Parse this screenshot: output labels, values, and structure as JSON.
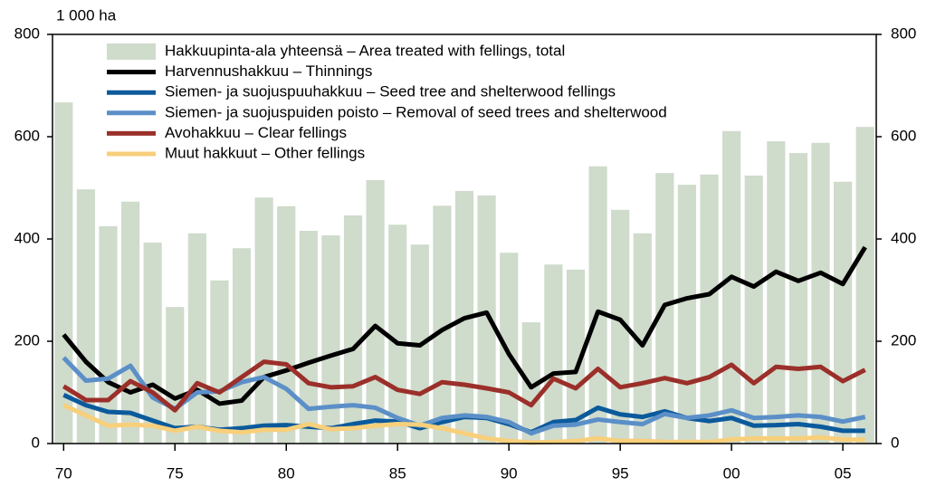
{
  "chart_data": {
    "type": "bar-line",
    "y_label": "1 000 ha",
    "x": [
      1970,
      1971,
      1972,
      1973,
      1974,
      1975,
      1976,
      1977,
      1978,
      1979,
      1980,
      1981,
      1982,
      1983,
      1984,
      1985,
      1986,
      1987,
      1988,
      1989,
      1990,
      1991,
      1992,
      1993,
      1994,
      1995,
      1996,
      1997,
      1998,
      1999,
      2000,
      2001,
      2002,
      2003,
      2004,
      2005,
      2006
    ],
    "xlim": [
      1969.5,
      2006.5
    ],
    "xticks": [
      {
        "value": 1970,
        "label": "70"
      },
      {
        "value": 1975,
        "label": "75"
      },
      {
        "value": 1980,
        "label": "80"
      },
      {
        "value": 1985,
        "label": "85"
      },
      {
        "value": 1990,
        "label": "90"
      },
      {
        "value": 1995,
        "label": "95"
      },
      {
        "value": 2000,
        "label": "00"
      },
      {
        "value": 2005,
        "label": "05"
      }
    ],
    "ylim": [
      0,
      800
    ],
    "yticks": [
      0,
      200,
      400,
      600,
      800
    ],
    "y2lim": [
      0,
      800
    ],
    "y2ticks": [
      0,
      200,
      400,
      600,
      800
    ],
    "legend": "upper left",
    "series": [
      {
        "name": "Hakkuupinta-ala yhteensä – Area treated with fellings, total",
        "kind": "bar",
        "color": "#cfdbcb",
        "values": [
          667,
          497,
          425,
          473,
          393,
          267,
          411,
          319,
          382,
          481,
          464,
          416,
          407,
          446,
          515,
          428,
          389,
          465,
          494,
          485,
          373,
          237,
          350,
          340,
          542,
          457,
          411,
          529,
          506,
          526,
          611,
          524,
          591,
          568,
          588,
          512,
          619
        ]
      },
      {
        "name": "Harvennushakkuu – Thinnings",
        "kind": "line",
        "color": "#000000",
        "values": [
          213,
          160,
          120,
          100,
          115,
          88,
          105,
          78,
          84,
          130,
          143,
          158,
          172,
          185,
          230,
          196,
          192,
          222,
          245,
          256,
          175,
          110,
          137,
          140,
          258,
          242,
          192,
          271,
          284,
          292,
          326,
          307,
          336,
          318,
          334,
          312,
          384
        ]
      },
      {
        "name": "Siemen- ja suojuspuuhakkuu – Seed tree and shelterwood fellings",
        "kind": "line",
        "color": "#0b5a9c",
        "values": [
          95,
          75,
          62,
          60,
          45,
          30,
          33,
          27,
          30,
          35,
          36,
          33,
          30,
          38,
          45,
          43,
          30,
          42,
          52,
          50,
          38,
          22,
          42,
          46,
          70,
          57,
          52,
          63,
          50,
          44,
          50,
          35,
          36,
          38,
          33,
          25,
          25
        ]
      },
      {
        "name": "Siemen- ja suojuspuiden poisto – Removal of seed trees and shelterwood",
        "kind": "line",
        "color": "#5b8fc8",
        "values": [
          168,
          123,
          127,
          152,
          90,
          68,
          100,
          102,
          120,
          130,
          107,
          68,
          72,
          75,
          70,
          50,
          35,
          50,
          55,
          52,
          42,
          20,
          35,
          37,
          47,
          42,
          38,
          58,
          50,
          55,
          65,
          50,
          52,
          55,
          52,
          43,
          52
        ]
      },
      {
        "name": "Avohakkuu – Clear fellings",
        "kind": "line",
        "color": "#9b2f2a",
        "values": [
          112,
          85,
          85,
          122,
          100,
          65,
          118,
          100,
          130,
          160,
          155,
          118,
          110,
          112,
          130,
          105,
          97,
          120,
          115,
          108,
          100,
          75,
          127,
          108,
          146,
          110,
          118,
          128,
          118,
          130,
          154,
          118,
          150,
          146,
          150,
          122,
          144
        ]
      },
      {
        "name": "Muut hakkuut – Other fellings",
        "kind": "line",
        "color": "#f8cf7a",
        "values": [
          75,
          55,
          35,
          37,
          35,
          25,
          33,
          25,
          22,
          27,
          27,
          38,
          28,
          30,
          35,
          38,
          37,
          30,
          20,
          10,
          5,
          2,
          3,
          5,
          10,
          5,
          5,
          3,
          3,
          3,
          8,
          10,
          10,
          10,
          12,
          8,
          7
        ]
      }
    ]
  }
}
